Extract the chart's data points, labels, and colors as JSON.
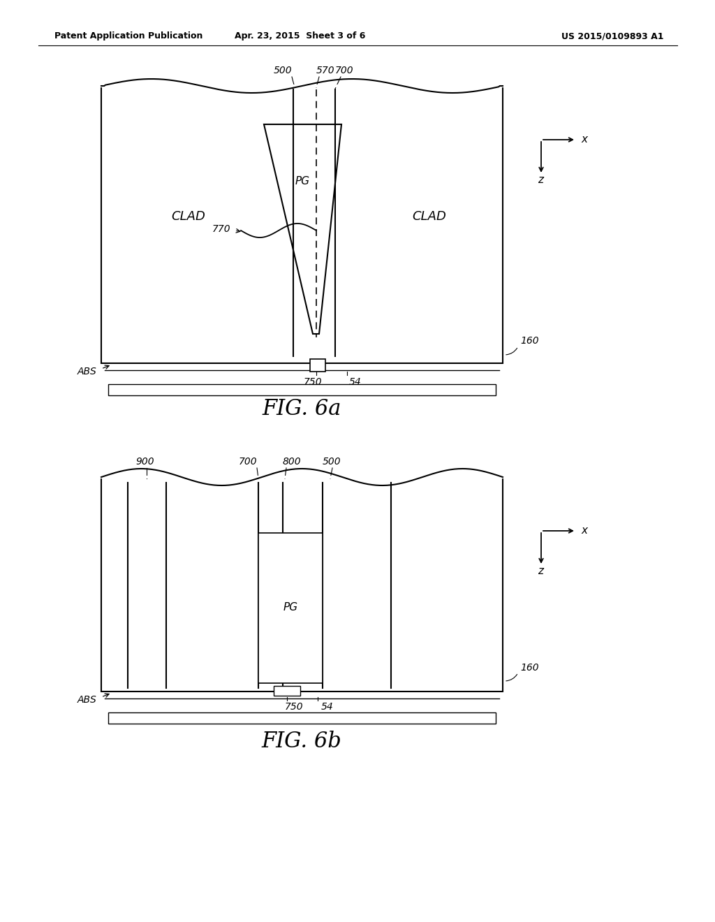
{
  "background_color": "#ffffff",
  "header_left": "Patent Application Publication",
  "header_center": "Apr. 23, 2015  Sheet 3 of 6",
  "header_right": "US 2015/0109893 A1",
  "fig6a_title": "FIG. 6a",
  "fig6b_title": "FIG. 6b"
}
